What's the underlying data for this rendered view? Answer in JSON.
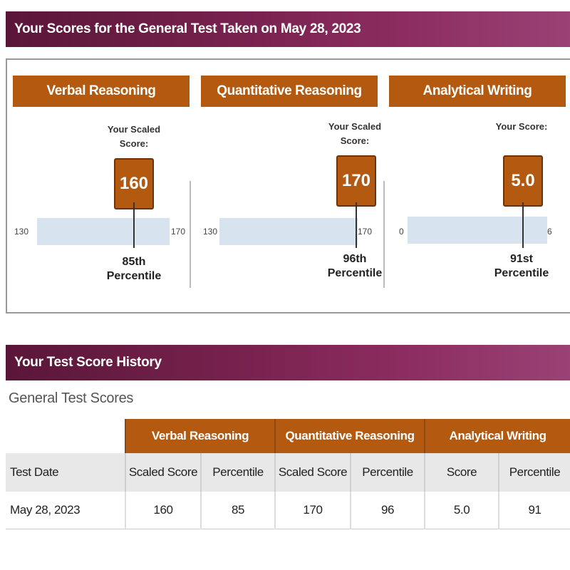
{
  "banners": {
    "current": "Your Scores for the General Test Taken on May 28, 2023",
    "history": "Your Test Score History"
  },
  "sections": [
    {
      "title": "Verbal Reasoning",
      "score_label": "Your Scaled Score:",
      "score": "160",
      "min": "130",
      "max": "170",
      "percentile_rank": "85th",
      "percentile_word": "Percentile"
    },
    {
      "title": "Quantitative Reasoning",
      "score_label": "Your Scaled Score:",
      "score": "170",
      "min": "130",
      "max": "170",
      "percentile_rank": "96th",
      "percentile_word": "Percentile"
    },
    {
      "title": "Analytical Writing",
      "score_label": "Your Score:",
      "score": "5.0",
      "min": "0",
      "max": "6",
      "percentile_rank": "91st",
      "percentile_word": "Percentile"
    }
  ],
  "history": {
    "title": "General Test Scores",
    "group_headers": [
      "Verbal Reasoning",
      "Quantitative Reasoning",
      "Analytical Writing"
    ],
    "column_headers": [
      "Test Date",
      "Scaled Score",
      "Percentile",
      "Scaled Score",
      "Percentile",
      "Score",
      "Percentile"
    ],
    "rows": [
      [
        "May 28, 2023",
        "160",
        "85",
        "170",
        "96",
        "5.0",
        "91"
      ]
    ]
  },
  "colors": {
    "banner": "#7a2350",
    "accent": "#b35a10",
    "bar": "#d8e3f0"
  }
}
